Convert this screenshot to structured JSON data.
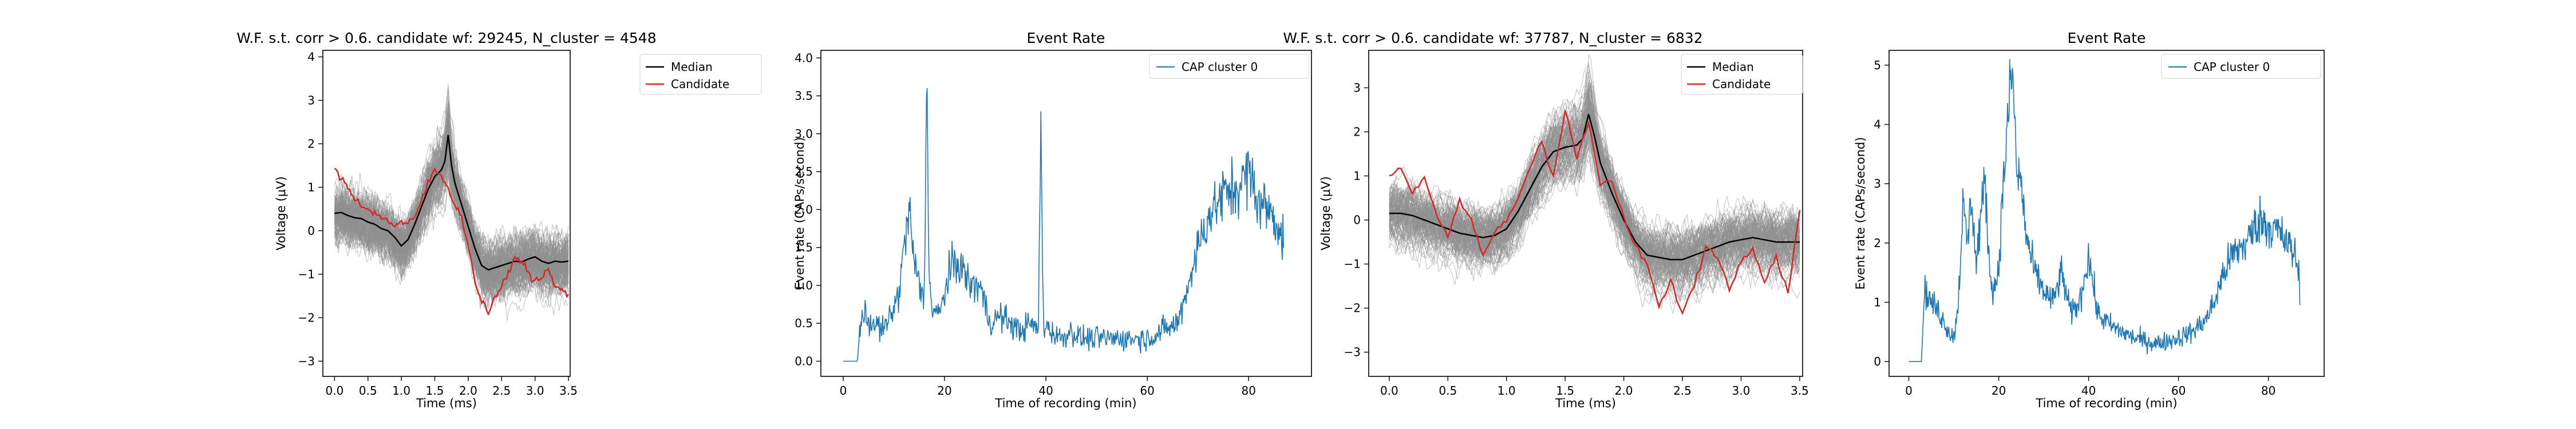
{
  "figure": {
    "background": "#ffffff"
  },
  "chart_data": [
    {
      "type": "line",
      "kind": "waveform",
      "title": "W.F. s.t. corr > 0.6. candidate wf: 29245, N_cluster = 4548",
      "xlabel": "Time (ms)",
      "ylabel": "Voltage (μV)",
      "xlim": [
        -0.175,
        3.525
      ],
      "ylim": [
        -3.35,
        4.15
      ],
      "xticks": [
        0.0,
        0.5,
        1.0,
        1.5,
        2.0,
        2.5,
        3.0,
        3.5
      ],
      "xtick_labels": [
        "0.0",
        "0.5",
        "1.0",
        "1.5",
        "2.0",
        "2.5",
        "3.0",
        "3.5"
      ],
      "yticks": [
        -3,
        -2,
        -1,
        0,
        1,
        2,
        3,
        4
      ],
      "ytick_labels": [
        "−3",
        "−2",
        "−1",
        "0",
        "1",
        "2",
        "3",
        "4"
      ],
      "legend": {
        "position": "upper right",
        "entries": [
          "Median",
          "Candidate"
        ]
      },
      "background_traces": {
        "count_drawn": 120,
        "color": "#909090",
        "band_half_width": 0.85
      },
      "series": [
        {
          "name": "Median",
          "color": "#000000",
          "x": [
            0.0,
            0.1,
            0.2,
            0.3,
            0.4,
            0.5,
            0.6,
            0.7,
            0.8,
            0.9,
            1.0,
            1.1,
            1.2,
            1.3,
            1.4,
            1.5,
            1.6,
            1.65,
            1.7,
            1.75,
            1.8,
            1.9,
            2.0,
            2.1,
            2.2,
            2.3,
            2.4,
            2.5,
            2.6,
            2.7,
            2.8,
            2.9,
            3.0,
            3.1,
            3.2,
            3.3,
            3.4,
            3.5
          ],
          "y": [
            0.4,
            0.42,
            0.35,
            0.3,
            0.28,
            0.2,
            0.15,
            0.05,
            0.0,
            -0.15,
            -0.35,
            -0.2,
            0.15,
            0.55,
            0.95,
            1.25,
            1.4,
            1.6,
            2.2,
            1.5,
            1.1,
            0.6,
            0.1,
            -0.4,
            -0.8,
            -0.9,
            -0.85,
            -0.8,
            -0.75,
            -0.7,
            -0.72,
            -0.65,
            -0.6,
            -0.7,
            -0.75,
            -0.7,
            -0.72,
            -0.7
          ]
        },
        {
          "name": "Candidate",
          "color": "#d62728",
          "x": [
            0.0,
            0.1,
            0.2,
            0.3,
            0.4,
            0.5,
            0.6,
            0.7,
            0.8,
            0.9,
            1.0,
            1.1,
            1.2,
            1.3,
            1.4,
            1.5,
            1.6,
            1.7,
            1.8,
            1.9,
            2.0,
            2.1,
            2.2,
            2.3,
            2.4,
            2.5,
            2.6,
            2.7,
            2.8,
            2.9,
            3.0,
            3.1,
            3.2,
            3.3,
            3.4,
            3.5
          ],
          "y": [
            1.45,
            1.2,
            1.0,
            0.75,
            0.6,
            0.5,
            0.4,
            0.3,
            0.25,
            0.1,
            0.2,
            0.15,
            0.3,
            0.7,
            1.1,
            1.4,
            1.25,
            1.0,
            0.6,
            0.3,
            -0.3,
            -1.2,
            -1.6,
            -1.9,
            -1.5,
            -1.3,
            -1.0,
            -0.6,
            -0.7,
            -0.95,
            -1.2,
            -1.05,
            -0.9,
            -1.3,
            -1.35,
            -1.5
          ]
        }
      ]
    },
    {
      "type": "line",
      "kind": "event-rate",
      "title": "Event Rate",
      "xlabel": "Time of recording (min)",
      "ylabel": "Event rate (CAPs/second)",
      "xlim": [
        -4.4,
        92.4
      ],
      "ylim": [
        -0.2,
        4.1
      ],
      "xticks": [
        0,
        20,
        40,
        60,
        80
      ],
      "xtick_labels": [
        "0",
        "20",
        "40",
        "60",
        "80"
      ],
      "yticks": [
        0.0,
        0.5,
        1.0,
        1.5,
        2.0,
        2.5,
        3.0,
        3.5,
        4.0
      ],
      "ytick_labels": [
        "0.0",
        "0.5",
        "1.0",
        "1.5",
        "2.0",
        "2.5",
        "3.0",
        "3.5",
        "4.0"
      ],
      "legend": {
        "position": "upper right",
        "entries": [
          "CAP cluster 0"
        ]
      },
      "series": [
        {
          "name": "CAP cluster 0",
          "color": "#1f77b4",
          "x": [
            0,
            2,
            2.8,
            3.5,
            6,
            8,
            10,
            11,
            12,
            13,
            14,
            15,
            16,
            16.5,
            17,
            17.5,
            19,
            21,
            23,
            25,
            27,
            29,
            31,
            33,
            35,
            37,
            38.5,
            39,
            39.5,
            41,
            43,
            45,
            47,
            50,
            55,
            60,
            63,
            66,
            68,
            70,
            72,
            75,
            78,
            80,
            82,
            84,
            86,
            87
          ],
          "y": [
            0.0,
            0.0,
            0.0,
            0.6,
            0.5,
            0.4,
            0.7,
            0.9,
            1.5,
            2.0,
            1.3,
            1.0,
            0.8,
            3.95,
            1.0,
            0.7,
            0.6,
            1.2,
            1.3,
            1.0,
            1.0,
            0.5,
            0.6,
            0.5,
            0.4,
            0.5,
            0.4,
            3.1,
            0.5,
            0.4,
            0.3,
            0.4,
            0.3,
            0.3,
            0.3,
            0.3,
            0.4,
            0.5,
            1.0,
            1.5,
            1.9,
            2.2,
            2.3,
            2.5,
            2.1,
            2.0,
            1.8,
            1.5
          ]
        }
      ]
    },
    {
      "type": "line",
      "kind": "waveform",
      "title": "W.F. s.t. corr > 0.6. candidate wf: 37787, N_cluster = 6832",
      "xlabel": "Time (ms)",
      "ylabel": "Voltage (μV)",
      "xlim": [
        -0.175,
        3.525
      ],
      "ylim": [
        -3.55,
        3.85
      ],
      "xticks": [
        0.0,
        0.5,
        1.0,
        1.5,
        2.0,
        2.5,
        3.0,
        3.5
      ],
      "xtick_labels": [
        "0.0",
        "0.5",
        "1.0",
        "1.5",
        "2.0",
        "2.5",
        "3.0",
        "3.5"
      ],
      "yticks": [
        -3,
        -2,
        -1,
        0,
        1,
        2,
        3
      ],
      "ytick_labels": [
        "−3",
        "−2",
        "−1",
        "0",
        "1",
        "2",
        "3"
      ],
      "legend": {
        "position": "upper right",
        "entries": [
          "Median",
          "Candidate"
        ]
      },
      "background_traces": {
        "count_drawn": 120,
        "color": "#909090",
        "band_half_width": 0.95
      },
      "series": [
        {
          "name": "Median",
          "color": "#000000",
          "x": [
            0.0,
            0.1,
            0.2,
            0.3,
            0.4,
            0.5,
            0.6,
            0.7,
            0.8,
            0.9,
            1.0,
            1.1,
            1.2,
            1.3,
            1.4,
            1.5,
            1.6,
            1.65,
            1.7,
            1.75,
            1.8,
            1.9,
            2.0,
            2.1,
            2.2,
            2.3,
            2.4,
            2.5,
            2.6,
            2.7,
            2.8,
            2.9,
            3.0,
            3.1,
            3.2,
            3.3,
            3.4,
            3.5
          ],
          "y": [
            0.15,
            0.15,
            0.1,
            0.0,
            -0.1,
            -0.2,
            -0.3,
            -0.35,
            -0.4,
            -0.35,
            -0.2,
            0.2,
            0.7,
            1.2,
            1.55,
            1.65,
            1.7,
            1.85,
            2.4,
            1.9,
            1.3,
            0.6,
            0.0,
            -0.5,
            -0.8,
            -0.85,
            -0.9,
            -0.9,
            -0.8,
            -0.7,
            -0.6,
            -0.5,
            -0.45,
            -0.4,
            -0.45,
            -0.5,
            -0.5,
            -0.5
          ]
        },
        {
          "name": "Candidate",
          "color": "#d62728",
          "x": [
            0.0,
            0.1,
            0.2,
            0.3,
            0.4,
            0.5,
            0.6,
            0.7,
            0.8,
            0.9,
            1.0,
            1.1,
            1.2,
            1.3,
            1.4,
            1.5,
            1.6,
            1.7,
            1.8,
            1.9,
            2.0,
            2.1,
            2.2,
            2.3,
            2.4,
            2.5,
            2.6,
            2.7,
            2.8,
            2.9,
            3.0,
            3.1,
            3.2,
            3.3,
            3.4,
            3.5
          ],
          "y": [
            1.0,
            1.2,
            0.6,
            1.0,
            0.1,
            -0.4,
            0.4,
            0.0,
            -0.8,
            -0.3,
            0.0,
            0.5,
            1.2,
            1.8,
            1.0,
            2.5,
            1.4,
            2.2,
            0.8,
            0.9,
            0.0,
            -0.6,
            -1.0,
            -2.0,
            -1.4,
            -2.1,
            -1.5,
            -0.6,
            -0.8,
            -1.6,
            -0.9,
            -0.6,
            -1.4,
            -0.8,
            -1.7,
            0.3
          ]
        }
      ]
    },
    {
      "type": "line",
      "kind": "event-rate",
      "title": "Event Rate",
      "xlabel": "Time of recording (min)",
      "ylabel": "Event rate (CAPs/second)",
      "xlim": [
        -4.4,
        92.4
      ],
      "ylim": [
        -0.25,
        5.25
      ],
      "xticks": [
        0,
        20,
        40,
        60,
        80
      ],
      "xtick_labels": [
        "0",
        "20",
        "40",
        "60",
        "80"
      ],
      "yticks": [
        0,
        1,
        2,
        3,
        4,
        5
      ],
      "ytick_labels": [
        "0",
        "1",
        "2",
        "3",
        "4",
        "5"
      ],
      "legend": {
        "position": "upper right",
        "entries": [
          "CAP cluster 0"
        ]
      },
      "series": [
        {
          "name": "CAP cluster 0",
          "color": "#1f77b4",
          "x": [
            0,
            2,
            2.8,
            3.5,
            5,
            7,
            9,
            10,
            11,
            12,
            13,
            14,
            15,
            16,
            17,
            18,
            19,
            20,
            21,
            22,
            23,
            24,
            25,
            26,
            27,
            28,
            30,
            32,
            34,
            36,
            38,
            40,
            42,
            45,
            50,
            55,
            60,
            63,
            66,
            68,
            70,
            72,
            75,
            78,
            80,
            82,
            84,
            86,
            87
          ],
          "y": [
            0.0,
            0.0,
            0.0,
            1.2,
            1.0,
            0.8,
            0.5,
            0.4,
            1.0,
            2.6,
            2.0,
            2.8,
            1.6,
            2.5,
            3.0,
            1.5,
            1.2,
            1.6,
            3.0,
            4.0,
            5.0,
            3.2,
            3.0,
            2.2,
            1.8,
            1.5,
            1.2,
            1.0,
            1.5,
            0.8,
            1.0,
            1.8,
            0.8,
            0.6,
            0.4,
            0.3,
            0.4,
            0.5,
            0.7,
            1.0,
            1.5,
            1.8,
            2.0,
            2.4,
            2.3,
            2.2,
            2.0,
            1.8,
            1.3
          ]
        }
      ]
    }
  ]
}
